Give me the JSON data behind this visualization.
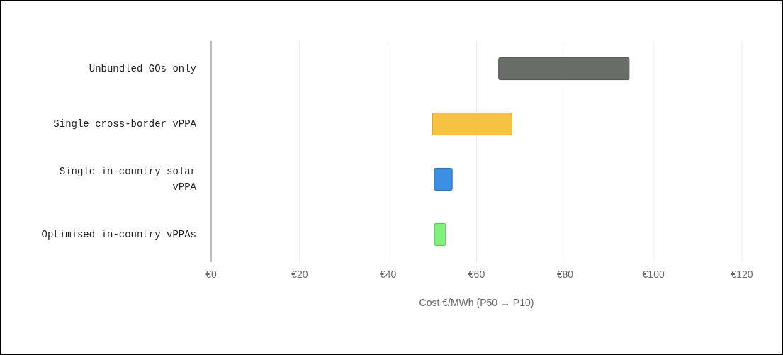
{
  "chart_data": {
    "type": "bar",
    "orientation": "horizontal",
    "categories": [
      "Unbundled GOs only",
      "Single cross-border vPPA",
      "Single in-country solar vPPA",
      "Optimised in-country vPPAs"
    ],
    "base": [
      65,
      50,
      50.5,
      50.5
    ],
    "values": [
      29.5,
      18,
      4,
      2.5
    ],
    "colors": [
      "#686d68",
      "#f5c243",
      "#3d8fe6",
      "#7ef27a"
    ],
    "xlim": [
      0,
      120
    ],
    "xticks": [
      {
        "value": 0,
        "label": "€0"
      },
      {
        "value": 20,
        "label": "€20"
      },
      {
        "value": 40,
        "label": "€40"
      },
      {
        "value": 60,
        "label": "€60"
      },
      {
        "value": 80,
        "label": "€80"
      },
      {
        "value": 100,
        "label": "€100"
      },
      {
        "value": 120,
        "label": "€120"
      }
    ],
    "xlabel": "Cost €/MWh (P50 → P10)",
    "grid": "x"
  }
}
